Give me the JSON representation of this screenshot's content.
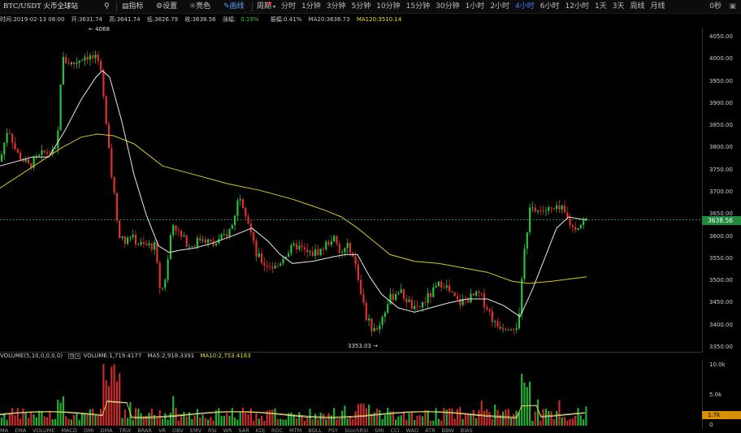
{
  "toolbar": {
    "symbol": "BTC/USDT 火币全球站",
    "indicators": "指标",
    "settings": "设置",
    "color": "亮色",
    "draw": "画线",
    "period": "周期",
    "periods": [
      {
        "label": "分时",
        "active": false
      },
      {
        "label": "1分钟",
        "active": false
      },
      {
        "label": "3分钟",
        "active": false
      },
      {
        "label": "5分钟",
        "active": false
      },
      {
        "label": "10分钟",
        "active": false
      },
      {
        "label": "15分钟",
        "active": false
      },
      {
        "label": "30分钟",
        "active": false
      },
      {
        "label": "1小时",
        "active": false
      },
      {
        "label": "2小时",
        "active": false
      },
      {
        "label": "4小时",
        "active": true
      },
      {
        "label": "6小时",
        "active": false
      },
      {
        "label": "12小时",
        "active": false
      },
      {
        "label": "1天",
        "active": false
      },
      {
        "label": "3天",
        "active": false
      },
      {
        "label": "周线",
        "active": false
      },
      {
        "label": "月线",
        "active": false
      }
    ],
    "countdown": "0秒",
    "accent": "#3d7bff"
  },
  "info": {
    "time": "时间:2019-02-13 08:00",
    "open": "开:3631.74",
    "high": "高:3641.74",
    "low": "低:3626.79",
    "close": "收:3638.56",
    "change_label": "涨幅:",
    "change": "0.19%",
    "amp": "振幅:0.41%",
    "ma20": "MA20:3636.73",
    "ma120": "MA120:3510.14"
  },
  "price_axis": {
    "ticks": [
      "4050.00",
      "4000.00",
      "3950.00",
      "3900.00",
      "3850.00",
      "3800.00",
      "3750.00",
      "3700.00",
      "3650.00",
      "3600.00",
      "3550.00",
      "3500.00",
      "3450.00",
      "3400.00",
      "3350.00"
    ],
    "current": "3638.56"
  },
  "annotations": {
    "high": "4068",
    "low": "3353.03"
  },
  "volume": {
    "label": "VOLUME(5,10,0,0,0,0)",
    "value": "VOLUME:1,719.4177",
    "ma5": "MA5:2,918.3391",
    "ma10": "MA10:2,753.4163",
    "ticks": [
      "10.0k",
      "5.0k",
      "0"
    ],
    "current": "1.7k"
  },
  "indicator_bar": [
    "MA",
    "EMA",
    "VOLUME",
    "MACD",
    "DMI",
    "DMA",
    "TRIX",
    "BRAR",
    "VR",
    "OBV",
    "EMV",
    "RSI",
    "WR",
    "SAR",
    "KDJ",
    "ROC",
    "MTM",
    "BOLL",
    "PSY",
    "StochRSI",
    "SMI",
    "CCI",
    "WAD",
    "ATR",
    "BBW",
    "BIAS"
  ],
  "chart_data": {
    "type": "candlestick",
    "ylim": [
      3340,
      4080
    ],
    "series": [
      {
        "name": "MA20",
        "color": "#e8e8e8"
      },
      {
        "name": "MA120",
        "color": "#d8c820"
      }
    ],
    "colors": {
      "up": "#27c13a",
      "down": "#e03030"
    },
    "ma20_path": [
      [
        0,
        3760
      ],
      [
        20,
        3770
      ],
      [
        40,
        3780
      ],
      [
        60,
        3780
      ],
      [
        80,
        3840
      ],
      [
        100,
        3910
      ],
      [
        118,
        3960
      ],
      [
        126,
        3975
      ],
      [
        135,
        3960
      ],
      [
        150,
        3860
      ],
      [
        165,
        3740
      ],
      [
        180,
        3650
      ],
      [
        195,
        3580
      ],
      [
        208,
        3565
      ],
      [
        222,
        3570
      ],
      [
        240,
        3575
      ],
      [
        260,
        3585
      ],
      [
        290,
        3605
      ],
      [
        310,
        3620
      ],
      [
        330,
        3590
      ],
      [
        345,
        3560
      ],
      [
        360,
        3540
      ],
      [
        385,
        3545
      ],
      [
        410,
        3555
      ],
      [
        425,
        3560
      ],
      [
        440,
        3560
      ],
      [
        455,
        3510
      ],
      [
        470,
        3470
      ],
      [
        490,
        3440
      ],
      [
        510,
        3430
      ],
      [
        530,
        3440
      ],
      [
        550,
        3450
      ],
      [
        575,
        3460
      ],
      [
        600,
        3460
      ],
      [
        620,
        3445
      ],
      [
        640,
        3420
      ],
      [
        655,
        3480
      ],
      [
        670,
        3550
      ],
      [
        685,
        3620
      ],
      [
        700,
        3645
      ],
      [
        715,
        3640
      ],
      [
        722,
        3638
      ]
    ],
    "ma120_path": [
      [
        0,
        3710
      ],
      [
        25,
        3740
      ],
      [
        50,
        3770
      ],
      [
        75,
        3800
      ],
      [
        100,
        3825
      ],
      [
        120,
        3832
      ],
      [
        140,
        3828
      ],
      [
        165,
        3810
      ],
      [
        200,
        3760
      ],
      [
        240,
        3740
      ],
      [
        280,
        3720
      ],
      [
        320,
        3705
      ],
      [
        360,
        3685
      ],
      [
        400,
        3660
      ],
      [
        420,
        3645
      ],
      [
        440,
        3620
      ],
      [
        460,
        3590
      ],
      [
        480,
        3560
      ],
      [
        510,
        3545
      ],
      [
        540,
        3540
      ],
      [
        570,
        3530
      ],
      [
        600,
        3520
      ],
      [
        630,
        3500
      ],
      [
        650,
        3495
      ],
      [
        680,
        3500
      ],
      [
        722,
        3510
      ]
    ]
  }
}
